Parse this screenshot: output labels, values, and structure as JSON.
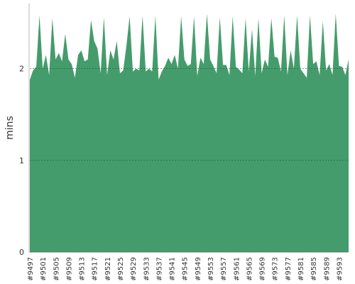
{
  "chart_data": {
    "type": "area",
    "y_label": "mins",
    "color": "#449c6c",
    "categories": [
      "#9497",
      null,
      null,
      null,
      "#9501",
      null,
      null,
      null,
      "#9505",
      null,
      null,
      null,
      "#9509",
      null,
      null,
      null,
      "#9513",
      null,
      null,
      null,
      "#9517",
      null,
      null,
      null,
      "#9521",
      null,
      null,
      null,
      "#9525",
      null,
      null,
      null,
      "#9529",
      null,
      null,
      null,
      "#9533",
      null,
      null,
      null,
      "#9537",
      null,
      null,
      null,
      "#9541",
      null,
      null,
      null,
      "#9545",
      null,
      null,
      null,
      "#9549",
      null,
      null,
      null,
      "#9553",
      null,
      null,
      null,
      "#9557",
      null,
      null,
      null,
      "#9561",
      null,
      null,
      null,
      "#9565",
      null,
      null,
      null,
      "#9569",
      null,
      null,
      null,
      "#9573",
      null,
      null,
      null,
      "#9577",
      null,
      null,
      null,
      "#9581",
      null,
      null,
      null,
      "#9585",
      null,
      null,
      null,
      "#9589",
      null,
      null,
      null,
      "#9593",
      null,
      null,
      null
    ],
    "values": [
      1.88,
      1.98,
      2.02,
      2.58,
      2.0,
      2.15,
      1.93,
      2.55,
      2.1,
      2.17,
      2.08,
      2.38,
      2.1,
      2.05,
      1.9,
      2.15,
      2.2,
      2.08,
      2.1,
      2.53,
      2.3,
      2.22,
      1.95,
      2.56,
      1.93,
      2.2,
      2.1,
      2.3,
      1.95,
      1.98,
      2.25,
      2.57,
      1.97,
      2.0,
      1.98,
      2.58,
      1.97,
      2.0,
      1.97,
      2.58,
      1.88,
      1.97,
      2.03,
      2.12,
      2.05,
      2.15,
      2.0,
      2.57,
      2.1,
      2.03,
      2.05,
      2.57,
      1.92,
      2.12,
      2.05,
      2.6,
      2.1,
      2.03,
      1.95,
      2.56,
      2.04,
      2.04,
      1.93,
      2.57,
      2.02,
      1.99,
      1.95,
      2.55,
      1.97,
      2.43,
      1.92,
      2.55,
      1.95,
      2.1,
      2.02,
      2.55,
      2.13,
      2.12,
      1.97,
      2.58,
      1.93,
      2.2,
      2.0,
      2.58,
      2.0,
      1.95,
      1.9,
      2.58,
      2.05,
      2.08,
      1.93,
      2.52,
      1.98,
      2.05,
      1.93,
      2.6,
      2.03,
      2.02,
      1.93,
      2.1
    ],
    "ylim": [
      0,
      2.71
    ],
    "yticks": [
      0,
      1,
      2
    ],
    "grid": true
  }
}
